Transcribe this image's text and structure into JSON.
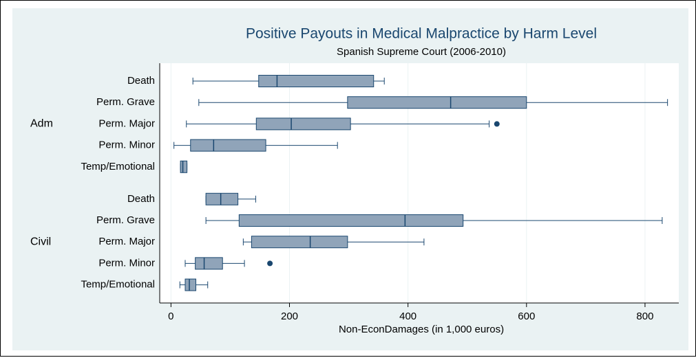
{
  "chart_data": {
    "type": "box",
    "title": "Positive Payouts in Medical Malpractice by Harm Level",
    "subtitle": "Spanish Supreme Court (2006-2010)",
    "x_label": "Non-EconDamages (in 1,000 euros)",
    "color": "#90a4b9",
    "line_color": "#1a476f",
    "grid": true,
    "xlim": [
      -19,
      857
    ],
    "xticks": [
      0,
      200,
      400,
      600,
      800
    ],
    "groups": [
      {
        "name": "Adm",
        "categories": [
          "Death",
          "Perm. Grave",
          "Perm. Major",
          "Perm. Minor",
          "Temp/Emotional"
        ],
        "boxes": [
          {
            "min": 37,
            "q1": 148,
            "median": 179,
            "q3": 342,
            "max": 360,
            "outliers": []
          },
          {
            "min": 47,
            "q1": 298,
            "median": 472,
            "q3": 600,
            "max": 838,
            "outliers": []
          },
          {
            "min": 26,
            "q1": 144,
            "median": 203,
            "q3": 303,
            "max": 537,
            "outliers": [
              550
            ]
          },
          {
            "min": 5,
            "q1": 33,
            "median": 72,
            "q3": 160,
            "max": 281,
            "outliers": []
          },
          {
            "min": 16,
            "q1": 16,
            "median": 20,
            "q3": 27,
            "max": 27,
            "outliers": []
          }
        ]
      },
      {
        "name": "Civil",
        "categories": [
          "Death",
          "Perm. Grave",
          "Perm. Major",
          "Perm. Minor",
          "Temp/Emotional"
        ],
        "boxes": [
          {
            "min": 59,
            "q1": 59,
            "median": 84,
            "q3": 113,
            "max": 143,
            "outliers": []
          },
          {
            "min": 59,
            "q1": 115,
            "median": 395,
            "q3": 493,
            "max": 829,
            "outliers": []
          },
          {
            "min": 122,
            "q1": 136,
            "median": 235,
            "q3": 298,
            "max": 427,
            "outliers": []
          },
          {
            "min": 24,
            "q1": 41,
            "median": 56,
            "q3": 87,
            "max": 124,
            "outliers": [
              167
            ]
          },
          {
            "min": 15,
            "q1": 24,
            "median": 31,
            "q3": 42,
            "max": 62,
            "outliers": []
          }
        ]
      }
    ]
  }
}
